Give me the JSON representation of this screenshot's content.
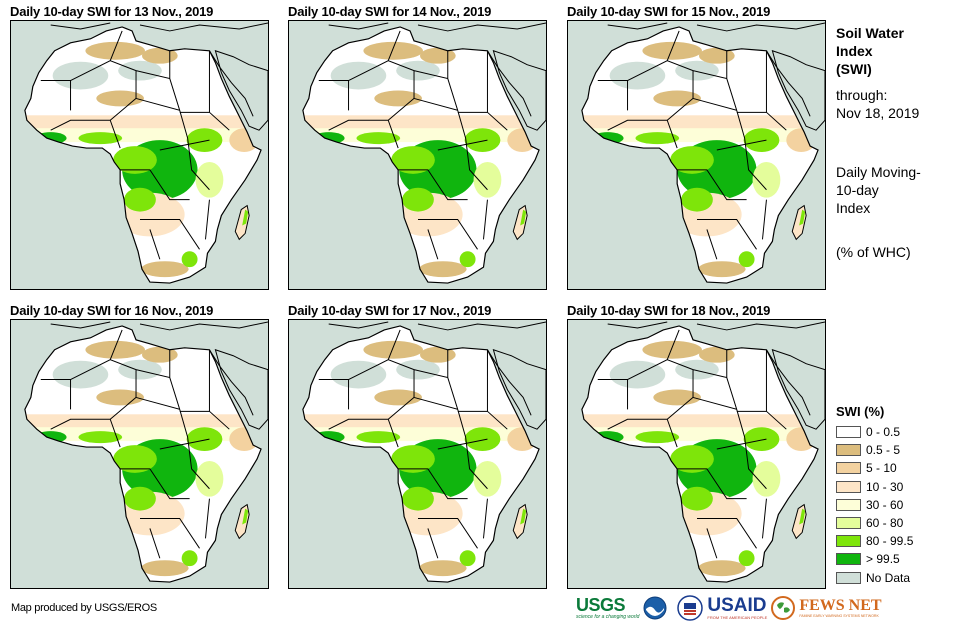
{
  "panels": [
    {
      "title": "Daily 10-day  SWI for 13 Nov., 2019",
      "date": "13 Nov., 2019"
    },
    {
      "title": "Daily 10-day  SWI for 14 Nov., 2019",
      "date": "14 Nov., 2019"
    },
    {
      "title": "Daily 10-day  SWI for 15 Nov., 2019",
      "date": "15 Nov., 2019"
    },
    {
      "title": "Daily 10-day  SWI for 16 Nov., 2019",
      "date": "16 Nov., 2019"
    },
    {
      "title": "Daily 10-day  SWI for 17 Nov., 2019",
      "date": "17 Nov., 2019"
    },
    {
      "title": "Daily 10-day  SWI for 18 Nov., 2019",
      "date": "18 Nov., 2019"
    }
  ],
  "side": {
    "title_line1": "Soil Water",
    "title_line2": "Index",
    "title_line3": "(SWI)",
    "through_label": "through:",
    "through_date": "Nov 18, 2019",
    "desc_line1": "Daily Moving-",
    "desc_line2": "10-day",
    "desc_line3": "Index",
    "unit": "(% of WHC)"
  },
  "legend": {
    "title": "SWI (%)",
    "items": [
      {
        "label": "0 - 0.5",
        "color": "#ffffff"
      },
      {
        "label": "0.5 - 5",
        "color": "#dcbd7e"
      },
      {
        "label": "5 - 10",
        "color": "#f3d2a0"
      },
      {
        "label": "10 - 30",
        "color": "#fde5c7"
      },
      {
        "label": "30 - 60",
        "color": "#fdfed8"
      },
      {
        "label": "60 - 80",
        "color": "#e4fd9b"
      },
      {
        "label": "80 - 99.5",
        "color": "#7ee50a"
      },
      {
        "label": "> 99.5",
        "color": "#10b50e"
      },
      {
        "label": "No Data",
        "color": "#d0dfd8"
      }
    ]
  },
  "footer": {
    "credit": "Map produced by USGS/EROS",
    "logos": {
      "usgs": "USGS",
      "usgs_tagline": "science for a changing world",
      "noaa": "NOAA",
      "usaid": "USAID",
      "usaid_tagline": "FROM THE AMERICAN PEOPLE",
      "fews": "FEWS NET",
      "fews_tagline": "FAMINE EARLY WARNING SYSTEMS NETWORK"
    }
  }
}
